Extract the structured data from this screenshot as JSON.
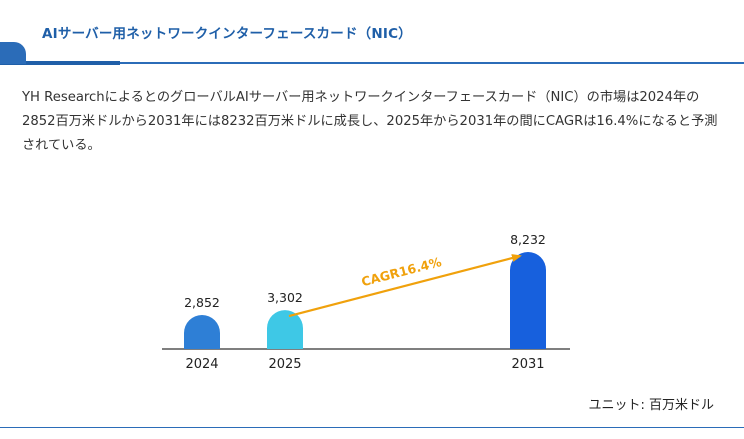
{
  "header": {
    "title": "AIサーバー用ネットワークインターフェースカード（NIC）"
  },
  "description": "YH ResearchによるとのグローバルAIサーバー用ネットワークインターフェースカード（NIC）の市場は2024年の2852百万米ドルから2031年には8232百万米ドルに成長し、2025年から2031年の間にCAGRは16.4%になると予測されている。",
  "chart_data": {
    "type": "bar",
    "categories": [
      "2024",
      "2025",
      "2031"
    ],
    "values": [
      2852,
      3302,
      8232
    ],
    "value_labels": [
      "2,852",
      "3,302",
      "8,232"
    ],
    "annotation": "CAGR16.4%",
    "unit": "ユニット: 百万米ドル",
    "colors": [
      "#2e7fd6",
      "#3ec8e6",
      "#1760dd"
    ],
    "arrow_color": "#f0a10c"
  }
}
